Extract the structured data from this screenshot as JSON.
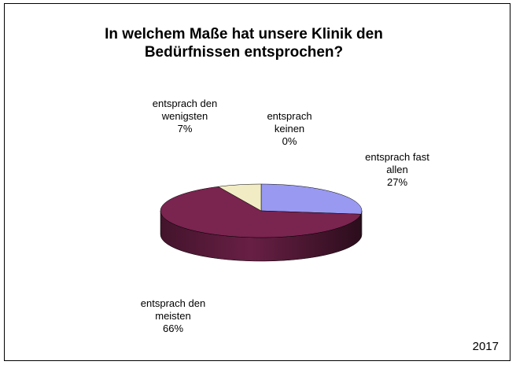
{
  "chart_data": {
    "type": "pie",
    "title": [
      "In welchem Maße hat unsere Klinik den",
      "Bedürfnissen entsprochen?"
    ],
    "slices": [
      {
        "label": [
          "entsprach fast",
          "allen"
        ],
        "value_label": "27%",
        "value": 27,
        "color": "#9999f2"
      },
      {
        "label": [
          "entsprach den",
          "meisten"
        ],
        "value_label": "66%",
        "value": 66,
        "color": "#7a2450"
      },
      {
        "label": [
          "entsprach den",
          "wenigsten"
        ],
        "value_label": "7%",
        "value": 7,
        "color": "#f2ecc4"
      },
      {
        "label": [
          "entsprach",
          "keinen"
        ],
        "value_label": "0%",
        "value": 0,
        "color": "#cfe8e8"
      }
    ],
    "three_d": true
  },
  "footer": {
    "year": "2017"
  }
}
